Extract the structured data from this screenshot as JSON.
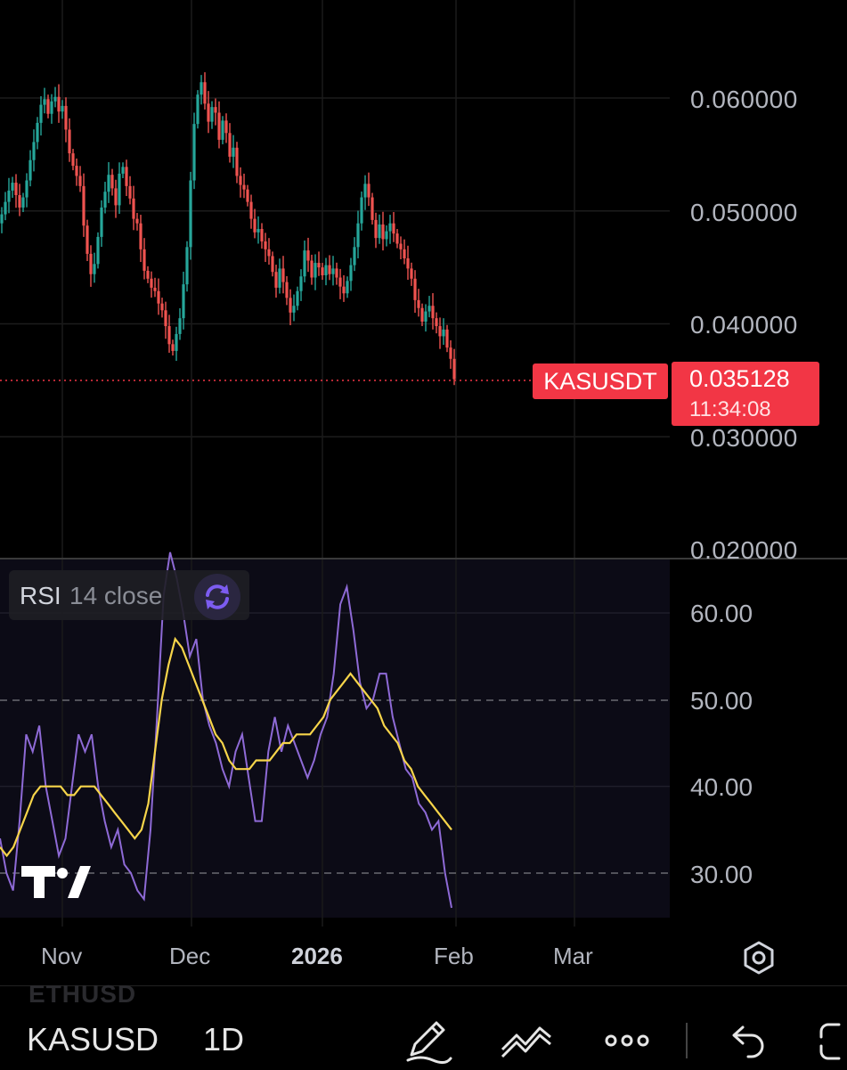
{
  "chart_data": [
    {
      "type": "candlestick",
      "symbol": "KASUSDT",
      "interval": "1D",
      "ylim": [
        0.02,
        0.0625
      ],
      "y_ticks": [
        "0.060000",
        "0.050000",
        "0.040000",
        "0.030000",
        "0.020000"
      ],
      "x_ticks": [
        "Nov",
        "Dec",
        "2026",
        "Feb",
        "Mar"
      ],
      "last_price": "0.035128",
      "countdown": "11:34:08",
      "close_series": [
        0.0489,
        0.0497,
        0.0508,
        0.0518,
        0.0525,
        0.0514,
        0.0503,
        0.0512,
        0.0527,
        0.0545,
        0.0561,
        0.0578,
        0.0594,
        0.0599,
        0.0586,
        0.0597,
        0.0601,
        0.0588,
        0.0593,
        0.0572,
        0.0551,
        0.054,
        0.0531,
        0.0522,
        0.0487,
        0.0462,
        0.0444,
        0.0453,
        0.0477,
        0.0503,
        0.0517,
        0.0532,
        0.052,
        0.0505,
        0.0533,
        0.0539,
        0.0522,
        0.0511,
        0.0493,
        0.0489,
        0.0466,
        0.0447,
        0.044,
        0.0432,
        0.0429,
        0.0418,
        0.0412,
        0.0398,
        0.0382,
        0.0376,
        0.0391,
        0.0405,
        0.0435,
        0.0468,
        0.0527,
        0.0577,
        0.0603,
        0.0614,
        0.0595,
        0.0579,
        0.0592,
        0.0587,
        0.0563,
        0.058,
        0.0569,
        0.0548,
        0.0556,
        0.0531,
        0.0523,
        0.0519,
        0.0508,
        0.0493,
        0.0481,
        0.0484,
        0.0473,
        0.0466,
        0.046,
        0.0446,
        0.0432,
        0.0449,
        0.0437,
        0.0423,
        0.041,
        0.0416,
        0.0429,
        0.0442,
        0.0465,
        0.0456,
        0.0441,
        0.0454,
        0.045,
        0.0443,
        0.0452,
        0.0444,
        0.0449,
        0.0441,
        0.0433,
        0.0427,
        0.0438,
        0.0452,
        0.0468,
        0.0489,
        0.0512,
        0.0524,
        0.0512,
        0.0492,
        0.0476,
        0.0488,
        0.0475,
        0.0482,
        0.0489,
        0.048,
        0.0471,
        0.0466,
        0.0458,
        0.0449,
        0.044,
        0.0421,
        0.0414,
        0.0402,
        0.0411,
        0.0416,
        0.0405,
        0.0398,
        0.0389,
        0.0395,
        0.0379,
        0.0369,
        0.0351
      ]
    },
    {
      "type": "line",
      "indicator": "RSI",
      "ylim": [
        25,
        68
      ],
      "y_ticks": [
        "60.00",
        "50.00",
        "40.00",
        "30.00"
      ],
      "bands": [
        50,
        30
      ],
      "series": [
        {
          "color": "#8e6ad6",
          "values": [
            34,
            30,
            28,
            36,
            46,
            44,
            47,
            40,
            36,
            32,
            34,
            40,
            46,
            44,
            46,
            40,
            36,
            33,
            35,
            31,
            30,
            28,
            27,
            35,
            48,
            62,
            67,
            64,
            60,
            55,
            57,
            50,
            47,
            45,
            42,
            40,
            44,
            46,
            41,
            36,
            36,
            44,
            48,
            44,
            47,
            45,
            43,
            41,
            43,
            46,
            48,
            53,
            61,
            63,
            58,
            52,
            49,
            50,
            53,
            53,
            48,
            45,
            42,
            41,
            38,
            37,
            35,
            36,
            30,
            26
          ]
        },
        {
          "color": "#f7d54a",
          "values": [
            33,
            32,
            33,
            35,
            37,
            39,
            40,
            40,
            40,
            40,
            39,
            39,
            40,
            40,
            40,
            39,
            38,
            37,
            36,
            35,
            34,
            35,
            38,
            44,
            50,
            54,
            57,
            56,
            54,
            52,
            50,
            48,
            46,
            45,
            43,
            42,
            42,
            42,
            43,
            43,
            43,
            44,
            45,
            45,
            46,
            46,
            46,
            47,
            48,
            50,
            51,
            52,
            53,
            52,
            51,
            50,
            49,
            47,
            46,
            45,
            43,
            42,
            40,
            39,
            38,
            37,
            36,
            35
          ]
        }
      ]
    }
  ],
  "legend": {
    "name": "RSI",
    "params": "14 close"
  },
  "colors": {
    "up": "#26a69a",
    "down": "#ef5350",
    "accent": "#f23645",
    "rsi": "#8e6ad6",
    "rsi_ma": "#f7d54a"
  },
  "toolbar": {
    "symbol": "KASUSD",
    "ghost_symbol": "ETHUSD",
    "interval": "1D",
    "icons": [
      "draw-icon",
      "indicators-icon",
      "more-icon",
      "undo-icon",
      "fullscreen-icon"
    ]
  }
}
